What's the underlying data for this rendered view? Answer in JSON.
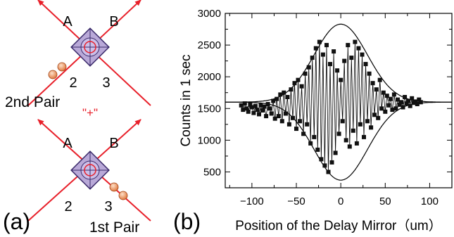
{
  "panel_a": {
    "panel_label": "(a)",
    "top": {
      "beam_left": "A",
      "beam_right": "B",
      "port_left": "2",
      "port_right": "3",
      "caption": "2nd Pair"
    },
    "connector": "\"+\"",
    "bottom": {
      "beam_left": "A",
      "beam_right": "B",
      "port_left": "2",
      "port_right": "3",
      "caption": "1st Pair"
    },
    "colors": {
      "beam": "#e8202a",
      "crystal_fill": "#b9a9d8",
      "crystal_edge": "#3a2a6a",
      "photon": "#f0a070",
      "connector": "#e8202a"
    }
  },
  "panel_b": {
    "panel_label": "(b)"
  },
  "chart_data": {
    "type": "scatter",
    "xlabel": "Position of the Delay Mirror（um）",
    "ylabel": "Counts in 1 sec",
    "xlim": [
      -130,
      125
    ],
    "ylim": [
      250,
      3000
    ],
    "xticks": [
      -100,
      -50,
      0,
      50,
      100
    ],
    "yticks": [
      500,
      1000,
      1500,
      2000,
      2500,
      3000
    ],
    "grid": false,
    "marker": "square",
    "connect_points": true,
    "envelope": {
      "center": 0,
      "baseline": 1600,
      "amplitude": 1230,
      "sigma": 30
    },
    "series": [
      {
        "x": [
          -112,
          -110,
          -108,
          -106,
          -104,
          -102,
          -100,
          -98,
          -96,
          -94,
          -92,
          -90,
          -88,
          -86,
          -84,
          -82,
          -80,
          -78,
          -76,
          -74,
          -72,
          -70,
          -68,
          -66,
          -64,
          -62,
          -60,
          -58,
          -56,
          -54,
          -52,
          -50,
          -48,
          -46,
          -44,
          -42,
          -40,
          -38,
          -36,
          -34,
          -32,
          -30,
          -28,
          -26,
          -24,
          -22,
          -20,
          -18,
          -16,
          -14,
          -12,
          -10,
          -8,
          -6,
          -4,
          -2,
          0,
          2,
          4,
          6,
          8,
          10,
          12,
          14,
          16,
          18,
          20,
          22,
          24,
          26,
          28,
          30,
          32,
          34,
          36,
          38,
          40,
          42,
          44,
          46,
          48,
          50,
          52,
          54,
          56,
          58,
          60,
          62,
          64,
          66,
          68,
          70,
          72,
          74,
          76,
          78,
          80,
          82,
          84,
          86,
          88,
          90
        ],
        "y": [
          1550,
          1480,
          1580,
          1500,
          1450,
          1560,
          1520,
          1430,
          1540,
          1480,
          1410,
          1550,
          1470,
          1530,
          1380,
          1570,
          1500,
          1420,
          1620,
          1340,
          1650,
          1380,
          1720,
          1300,
          1750,
          1420,
          1680,
          1250,
          1800,
          1350,
          1900,
          1180,
          1950,
          1300,
          1850,
          1100,
          2050,
          1250,
          2150,
          950,
          2300,
          1050,
          2450,
          850,
          2550,
          700,
          2350,
          600,
          2500,
          500,
          2200,
          650,
          2400,
          800,
          2100,
          1100,
          1950,
          1300,
          2250,
          1000,
          2500,
          900,
          2300,
          1150,
          2550,
          950,
          2450,
          1250,
          2350,
          1050,
          2200,
          1300,
          2050,
          1200,
          1900,
          1400,
          1800,
          1350,
          1950,
          1500,
          1750,
          1450,
          1700,
          1550,
          1650,
          1480,
          1720,
          1500,
          1640,
          1560,
          1600,
          1520,
          1680,
          1580,
          1620,
          1540,
          1660,
          1590,
          1610,
          1570,
          1640,
          1600
        ]
      }
    ]
  }
}
